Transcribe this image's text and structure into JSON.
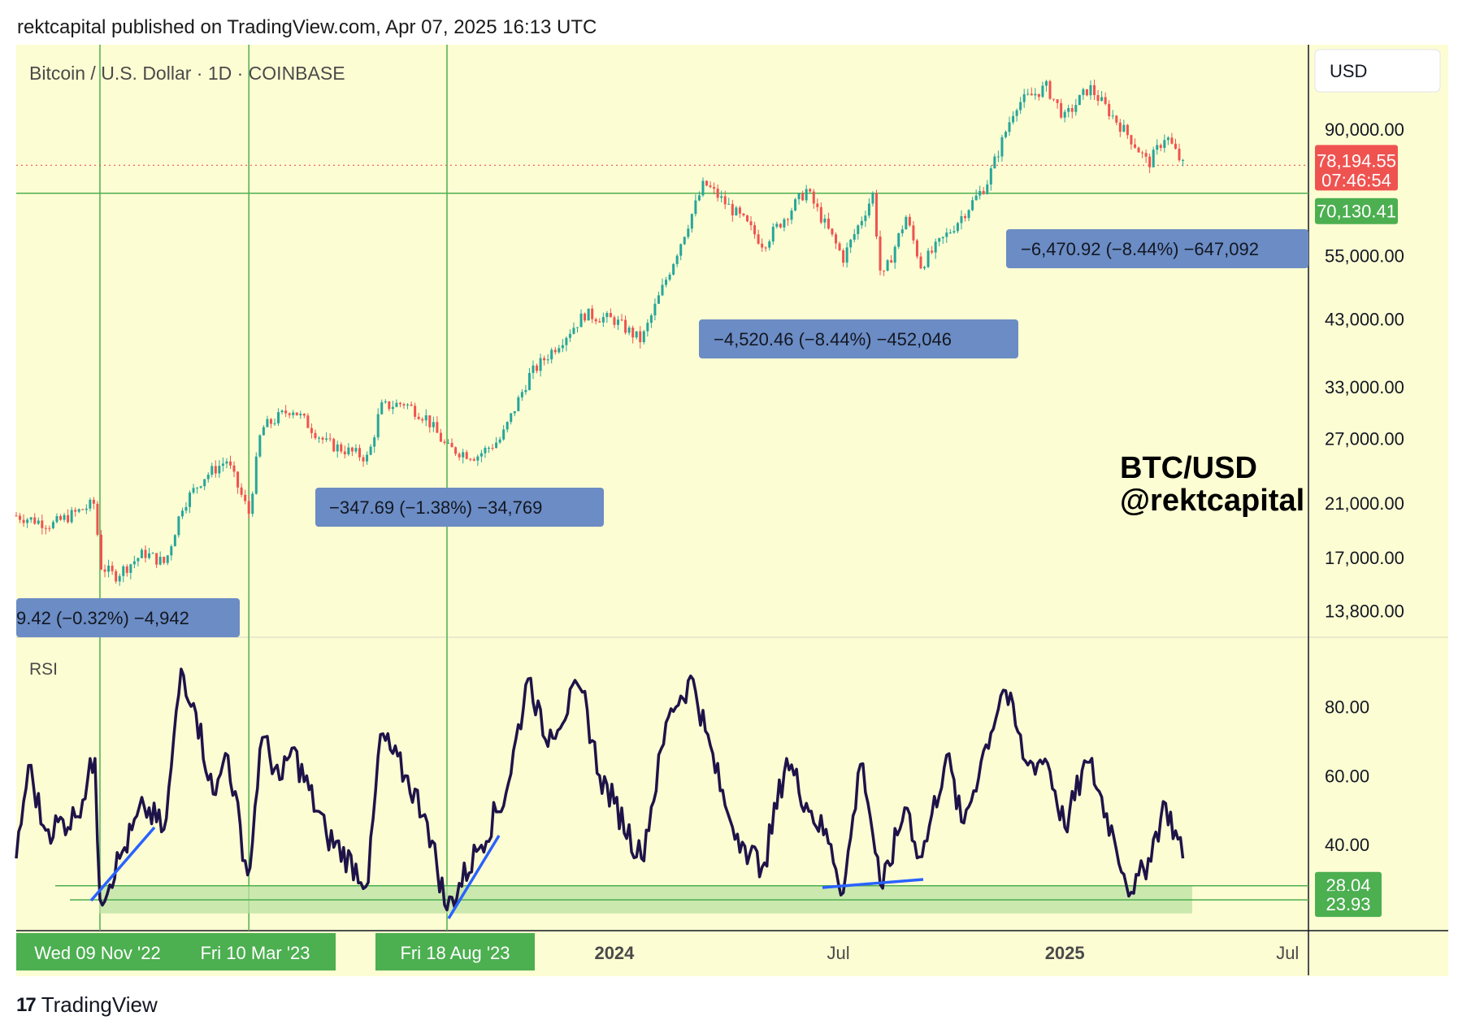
{
  "header": {
    "text": "rektcapital published on TradingView.com, Apr 07, 2025 16:13 UTC"
  },
  "symbol_title": "Bitcoin / U.S. Dollar · 1D · COINBASE",
  "currency_button": "USD",
  "watermark": {
    "line1": "BTC/USD",
    "line2": "@rektcapital"
  },
  "rsi_label": "RSI",
  "footer": {
    "icon": "tradingview-logo-icon",
    "brand": "TradingView"
  },
  "colors": {
    "background": "#fdfdd3",
    "green_line": "#4caf50",
    "candle_up": "#26a69a",
    "candle_down": "#ef5350",
    "rsi_line": "#1e1349",
    "annotation_box": "#6b8cc4",
    "rsi_zone": "#b9e2a2",
    "trendline": "#2962ff"
  },
  "chart_data": [
    {
      "type": "line",
      "subtype": "candlestick",
      "title": "Bitcoin / U.S. Dollar · 1D · COINBASE",
      "y_scale": "log",
      "ylim": [
        12500,
        125000
      ],
      "y_ticks": [
        "90,000.00",
        "55,000.00",
        "43,000.00",
        "33,000.00",
        "27,000.00",
        "21,000.00",
        "17,000.00",
        "13,800.00"
      ],
      "y_tick_values": [
        90000,
        55000,
        43000,
        33000,
        27000,
        21000,
        17000,
        13800
      ],
      "x_ticks": [
        "2024",
        "Jul",
        "2025",
        "Jul"
      ],
      "x_tick_dates": [
        "2024-01-01",
        "2024-07-01",
        "2025-01-01",
        "2025-07-01"
      ],
      "xlim": [
        "2022-09-02",
        "2025-07-18"
      ],
      "current_price": {
        "label": "78,194.55",
        "countdown": "07:46:54",
        "value": 78194.55
      },
      "horizontal_level": {
        "label": "70,130.41",
        "value": 70130.41
      },
      "vertical_markers": [
        {
          "date": "2022-11-09",
          "label": "Wed 09 Nov '22"
        },
        {
          "date": "2023-03-10",
          "label": "Fri 10 Mar '23"
        },
        {
          "date": "2023-08-18",
          "label": "Fri 18 Aug '23"
        }
      ],
      "annotations": [
        {
          "text": "9.42 (−0.32%) −4,942",
          "date": "2022-11-09"
        },
        {
          "text": "−347.69 (−1.38%) −34,769",
          "date": "2023-08-18"
        },
        {
          "text": "−4,520.46 (−8.44%) −452,046",
          "date": "2024-08-05"
        },
        {
          "text": "−6,470.92 (−8.44%) −647,092",
          "date": "2025-04-07"
        }
      ],
      "series": [
        {
          "name": "",
          "points": [
            [
              "2022-09-02",
              20000
            ],
            [
              "2022-10-01",
              19300
            ],
            [
              "2022-11-05",
              21000
            ],
            [
              "2022-11-09",
              16500
            ],
            [
              "2022-11-21",
              15800
            ],
            [
              "2022-12-15",
              17300
            ],
            [
              "2023-01-01",
              16600
            ],
            [
              "2023-01-15",
              20800
            ],
            [
              "2023-02-01",
              23200
            ],
            [
              "2023-02-20",
              24800
            ],
            [
              "2023-03-10",
              20200
            ],
            [
              "2023-03-20",
              28000
            ],
            [
              "2023-04-14",
              30400
            ],
            [
              "2023-05-12",
              26500
            ],
            [
              "2023-06-15",
              25000
            ],
            [
              "2023-06-25",
              30500
            ],
            [
              "2023-07-14",
              31000
            ],
            [
              "2023-08-01",
              29300
            ],
            [
              "2023-08-18",
              26000
            ],
            [
              "2023-09-11",
              25200
            ],
            [
              "2023-10-01",
              27000
            ],
            [
              "2023-10-24",
              34500
            ],
            [
              "2023-12-08",
              43800
            ],
            [
              "2024-01-01",
              42800
            ],
            [
              "2024-01-23",
              39500
            ],
            [
              "2024-02-15",
              52000
            ],
            [
              "2024-03-14",
              73000
            ],
            [
              "2024-04-15",
              63000
            ],
            [
              "2024-05-01",
              57500
            ],
            [
              "2024-06-05",
              71000
            ],
            [
              "2024-07-05",
              54500
            ],
            [
              "2024-07-29",
              69800
            ],
            [
              "2024-08-05",
              49500
            ],
            [
              "2024-08-25",
              64000
            ],
            [
              "2024-09-06",
              53000
            ],
            [
              "2024-10-01",
              61000
            ],
            [
              "2024-10-29",
              72500
            ],
            [
              "2024-11-22",
              99000
            ],
            [
              "2024-12-17",
              106000
            ],
            [
              "2025-01-01",
              94000
            ],
            [
              "2025-01-21",
              106000
            ],
            [
              "2025-02-25",
              86000
            ],
            [
              "2025-03-10",
              78500
            ],
            [
              "2025-03-24",
              88000
            ],
            [
              "2025-04-07",
              78194.55
            ]
          ]
        }
      ]
    },
    {
      "type": "line",
      "title": "RSI",
      "ylim": [
        15,
        100
      ],
      "y_ticks": [
        "80.00",
        "60.00",
        "40.00"
      ],
      "y_tick_values": [
        80,
        60,
        40
      ],
      "levels": [
        {
          "label": "28.04",
          "value": 28.04
        },
        {
          "label": "23.93",
          "value": 23.93
        }
      ],
      "series": [
        {
          "name": "RSI",
          "points": [
            [
              "2022-09-02",
              36
            ],
            [
              "2022-09-12",
              63
            ],
            [
              "2022-09-25",
              44
            ],
            [
              "2022-10-20",
              48
            ],
            [
              "2022-11-05",
              65
            ],
            [
              "2022-11-09",
              24
            ],
            [
              "2022-11-25",
              36
            ],
            [
              "2022-12-15",
              51
            ],
            [
              "2023-01-01",
              44
            ],
            [
              "2023-01-14",
              91
            ],
            [
              "2023-01-25",
              80
            ],
            [
              "2023-02-10",
              53
            ],
            [
              "2023-02-20",
              68
            ],
            [
              "2023-03-10",
              29
            ],
            [
              "2023-03-20",
              72
            ],
            [
              "2023-04-05",
              58
            ],
            [
              "2023-04-14",
              68
            ],
            [
              "2023-05-12",
              43
            ],
            [
              "2023-06-15",
              29
            ],
            [
              "2023-06-25",
              72
            ],
            [
              "2023-07-15",
              60
            ],
            [
              "2023-08-01",
              48
            ],
            [
              "2023-08-18",
              21
            ],
            [
              "2023-09-11",
              38
            ],
            [
              "2023-10-05",
              55
            ],
            [
              "2023-10-24",
              90
            ],
            [
              "2023-11-05",
              70
            ],
            [
              "2023-12-05",
              86
            ],
            [
              "2023-12-20",
              60
            ],
            [
              "2024-01-01",
              52
            ],
            [
              "2024-01-23",
              36
            ],
            [
              "2024-02-15",
              79
            ],
            [
              "2024-03-05",
              88
            ],
            [
              "2024-03-15",
              73
            ],
            [
              "2024-04-01",
              50
            ],
            [
              "2024-04-15",
              40
            ],
            [
              "2024-05-01",
              33
            ],
            [
              "2024-05-20",
              65
            ],
            [
              "2024-06-05",
              52
            ],
            [
              "2024-06-25",
              40
            ],
            [
              "2024-07-05",
              26
            ],
            [
              "2024-07-20",
              66
            ],
            [
              "2024-08-05",
              26
            ],
            [
              "2024-08-25",
              52
            ],
            [
              "2024-09-06",
              35
            ],
            [
              "2024-09-27",
              66
            ],
            [
              "2024-10-10",
              45
            ],
            [
              "2024-10-29",
              69
            ],
            [
              "2024-11-13",
              86
            ],
            [
              "2024-12-01",
              63
            ],
            [
              "2024-12-17",
              65
            ],
            [
              "2025-01-01",
              45
            ],
            [
              "2025-01-20",
              65
            ],
            [
              "2025-02-10",
              42
            ],
            [
              "2025-02-25",
              25
            ],
            [
              "2025-03-10",
              36
            ],
            [
              "2025-03-24",
              52
            ],
            [
              "2025-04-07",
              36
            ]
          ]
        }
      ]
    }
  ]
}
